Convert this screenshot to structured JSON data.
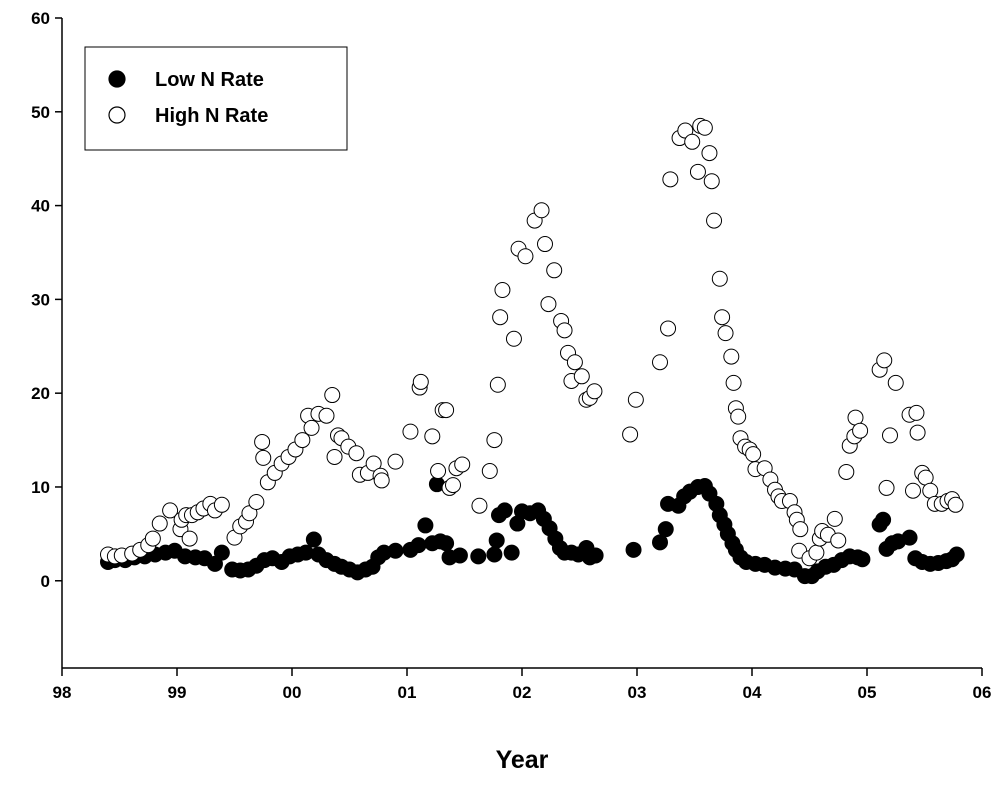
{
  "chart_data": {
    "type": "scatter",
    "xlabel": "Year",
    "legend": "upper left",
    "xlim": [
      1998,
      2006
    ],
    "ylim": [
      -9.3,
      60
    ],
    "xticks": [
      {
        "value": 1998,
        "label": "98"
      },
      {
        "value": 1999,
        "label": "99"
      },
      {
        "value": 2000,
        "label": "00"
      },
      {
        "value": 2001,
        "label": "01"
      },
      {
        "value": 2002,
        "label": "02"
      },
      {
        "value": 2003,
        "label": "03"
      },
      {
        "value": 2004,
        "label": "04"
      },
      {
        "value": 2005,
        "label": "05"
      },
      {
        "value": 2006,
        "label": "06"
      }
    ],
    "yticks": [
      0,
      10,
      20,
      30,
      40,
      50,
      60
    ],
    "series": [
      {
        "name": "Low N Rate",
        "color": "#000000",
        "x": [
          1998.4,
          1998.46,
          1998.55,
          1998.63,
          1998.72,
          1998.81,
          1998.9,
          1998.98,
          1999.07,
          1999.16,
          1999.24,
          1999.33,
          1999.39,
          1999.48,
          1999.55,
          1999.62,
          1999.69,
          1999.76,
          1999.83,
          1999.91,
          1999.98,
          2000.05,
          2000.12,
          2000.19,
          2000.23,
          2000.3,
          2000.37,
          2000.43,
          2000.5,
          2000.57,
          2000.64,
          2000.7,
          2000.75,
          2000.8,
          2000.9,
          2001.03,
          2001.1,
          2001.16,
          2001.22,
          2001.26,
          2001.29,
          2001.34,
          2001.37,
          2001.46,
          2001.62,
          2001.76,
          2001.78,
          2001.8,
          2001.85,
          2001.91,
          2001.96,
          2002.0,
          2002.07,
          2002.14,
          2002.19,
          2002.24,
          2002.29,
          2002.33,
          2002.37,
          2002.43,
          2002.49,
          2002.56,
          2002.59,
          2002.64,
          2002.97,
          2003.2,
          2003.25,
          2003.27,
          2003.36,
          2003.41,
          2003.46,
          2003.53,
          2003.59,
          2003.63,
          2003.69,
          2003.72,
          2003.76,
          2003.79,
          2003.83,
          2003.86,
          2003.9,
          2003.95,
          2004.03,
          2004.11,
          2004.2,
          2004.29,
          2004.37,
          2004.46,
          2004.52,
          2004.57,
          2004.64,
          2004.71,
          2004.78,
          2004.85,
          2004.92,
          2004.96,
          2005.11,
          2005.14,
          2005.17,
          2005.22,
          2005.27,
          2005.37,
          2005.42,
          2005.48,
          2005.55,
          2005.62,
          2005.69,
          2005.74,
          2005.78
        ],
        "values": [
          2.0,
          2.2,
          2.2,
          2.5,
          2.6,
          2.8,
          3.0,
          3.2,
          2.6,
          2.5,
          2.4,
          1.8,
          3.0,
          1.2,
          1.1,
          1.2,
          1.6,
          2.2,
          2.4,
          2.0,
          2.6,
          2.8,
          3.0,
          4.4,
          2.8,
          2.2,
          1.8,
          1.5,
          1.2,
          0.9,
          1.2,
          1.5,
          2.5,
          3.0,
          3.2,
          3.3,
          3.8,
          5.9,
          4.0,
          10.3,
          4.2,
          4.0,
          2.5,
          2.7,
          2.6,
          2.8,
          4.3,
          7.0,
          7.5,
          3.0,
          6.1,
          7.4,
          7.2,
          7.5,
          6.6,
          5.6,
          4.5,
          3.5,
          3.0,
          3.0,
          2.8,
          3.5,
          2.5,
          2.7,
          3.3,
          4.1,
          5.5,
          8.2,
          8.0,
          9.0,
          9.5,
          10.0,
          10.1,
          9.3,
          8.2,
          7.0,
          6.0,
          5.0,
          4.0,
          3.3,
          2.5,
          2.0,
          1.8,
          1.7,
          1.4,
          1.3,
          1.2,
          0.5,
          0.5,
          1.0,
          1.5,
          1.7,
          2.2,
          2.6,
          2.5,
          2.3,
          6.0,
          6.5,
          3.4,
          4.0,
          4.2,
          4.6,
          2.4,
          2.0,
          1.8,
          1.9,
          2.1,
          2.3,
          2.8
        ]
      },
      {
        "name": "High N Rate",
        "color": "#ffffff",
        "x": [
          1998.4,
          1998.46,
          1998.52,
          1998.61,
          1998.68,
          1998.75,
          1998.79,
          1998.85,
          1998.94,
          1999.03,
          1999.04,
          1999.08,
          1999.11,
          1999.13,
          1999.18,
          1999.23,
          1999.29,
          1999.33,
          1999.39,
          1999.5,
          1999.55,
          1999.6,
          1999.63,
          1999.69,
          1999.74,
          1999.75,
          1999.79,
          1999.85,
          1999.91,
          1999.97,
          2000.03,
          2000.09,
          2000.14,
          2000.17,
          2000.23,
          2000.3,
          2000.35,
          2000.37,
          2000.4,
          2000.43,
          2000.49,
          2000.56,
          2000.59,
          2000.66,
          2000.71,
          2000.77,
          2000.78,
          2000.9,
          2001.03,
          2001.11,
          2001.12,
          2001.22,
          2001.27,
          2001.31,
          2001.34,
          2001.37,
          2001.4,
          2001.43,
          2001.48,
          2001.63,
          2001.72,
          2001.76,
          2001.79,
          2001.81,
          2001.83,
          2001.93,
          2001.97,
          2002.03,
          2002.11,
          2002.17,
          2002.2,
          2002.23,
          2002.28,
          2002.34,
          2002.37,
          2002.4,
          2002.43,
          2002.46,
          2002.52,
          2002.56,
          2002.59,
          2002.63,
          2002.94,
          2002.99,
          2003.2,
          2003.27,
          2003.29,
          2003.37,
          2003.42,
          2003.48,
          2003.53,
          2003.55,
          2003.59,
          2003.63,
          2003.65,
          2003.67,
          2003.72,
          2003.74,
          2003.77,
          2003.82,
          2003.84,
          2003.86,
          2003.88,
          2003.9,
          2003.94,
          2003.98,
          2004.01,
          2004.03,
          2004.11,
          2004.16,
          2004.2,
          2004.23,
          2004.26,
          2004.33,
          2004.37,
          2004.39,
          2004.42,
          2004.41,
          2004.5,
          2004.56,
          2004.59,
          2004.61,
          2004.66,
          2004.72,
          2004.75,
          2004.82,
          2004.85,
          2004.89,
          2004.9,
          2004.94,
          2005.11,
          2005.15,
          2005.17,
          2005.2,
          2005.25,
          2005.37,
          2005.4,
          2005.43,
          2005.44,
          2005.48,
          2005.51,
          2005.55,
          2005.59,
          2005.65,
          2005.7,
          2005.74,
          2005.77
        ],
        "values": [
          2.8,
          2.6,
          2.7,
          2.9,
          3.3,
          3.8,
          4.5,
          6.1,
          7.5,
          5.5,
          6.5,
          7.0,
          4.5,
          7.0,
          7.3,
          7.7,
          8.2,
          7.5,
          8.1,
          4.6,
          5.8,
          6.3,
          7.2,
          8.4,
          14.8,
          13.1,
          10.5,
          11.5,
          12.5,
          13.2,
          14.0,
          15.0,
          17.6,
          16.3,
          17.8,
          17.6,
          19.8,
          13.2,
          15.5,
          15.2,
          14.3,
          13.6,
          11.3,
          11.5,
          12.5,
          11.2,
          10.7,
          12.7,
          15.9,
          20.6,
          21.2,
          15.4,
          11.7,
          18.2,
          18.2,
          9.9,
          10.2,
          12.0,
          12.4,
          8.0,
          11.7,
          15.0,
          20.9,
          28.1,
          31.0,
          25.8,
          35.4,
          34.6,
          38.4,
          39.5,
          35.9,
          29.5,
          33.1,
          27.7,
          26.7,
          24.3,
          21.3,
          23.3,
          21.8,
          19.3,
          19.5,
          20.2,
          15.6,
          19.3,
          23.3,
          26.9,
          42.8,
          47.2,
          48.0,
          46.8,
          43.6,
          48.5,
          48.3,
          45.6,
          42.6,
          38.4,
          32.2,
          28.1,
          26.4,
          23.9,
          21.1,
          18.4,
          17.5,
          15.2,
          14.3,
          14.0,
          13.5,
          11.9,
          12.0,
          10.8,
          9.7,
          9.0,
          8.5,
          8.5,
          7.3,
          6.5,
          5.5,
          3.2,
          2.4,
          3.0,
          4.5,
          5.3,
          4.9,
          6.6,
          4.3,
          11.6,
          14.4,
          15.4,
          17.4,
          16.0,
          22.5,
          23.5,
          9.9,
          15.5,
          21.1,
          17.7,
          9.6,
          17.9,
          15.8,
          11.5,
          11.0,
          9.6,
          8.2,
          8.2,
          8.5,
          8.7,
          8.1
        ]
      }
    ]
  }
}
